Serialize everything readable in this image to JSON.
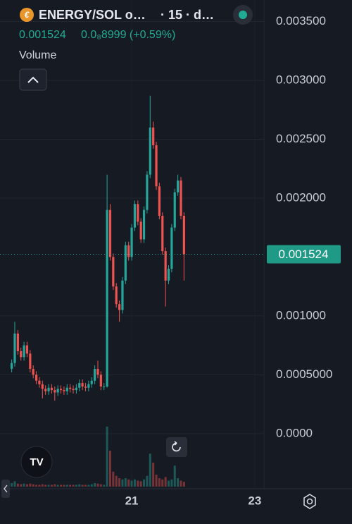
{
  "chart_data": {
    "type": "candlestick",
    "title": "ENERGY/SOL o…",
    "interval": "· 15 · d…",
    "change": "0.0₈8999 (+0.59%)",
    "volume_label": "Volume",
    "last_price": 0.001524,
    "up_color": "#26a69a",
    "down_color": "#ef5350",
    "grid": true,
    "x": [
      19.05,
      19.1,
      19.15,
      19.2,
      19.25,
      19.3,
      19.35,
      19.4,
      19.45,
      19.5,
      19.55,
      19.6,
      19.65,
      19.7,
      19.75,
      19.8,
      19.85,
      19.9,
      19.95,
      20.0,
      20.05,
      20.1,
      20.15,
      20.2,
      20.25,
      20.3,
      20.35,
      20.4,
      20.45,
      20.5,
      20.55,
      20.6,
      20.65,
      20.7,
      20.75,
      20.8,
      20.85,
      20.9,
      20.95,
      21.0,
      21.05,
      21.1,
      21.15,
      21.2,
      21.25,
      21.3,
      21.35,
      21.4,
      21.45,
      21.5,
      21.55,
      21.6,
      21.65,
      21.7,
      21.75,
      21.8,
      21.85
    ],
    "open": [
      0.00055,
      0.0006,
      0.00085,
      0.0007,
      0.00065,
      0.00075,
      0.00068,
      0.00055,
      0.0005,
      0.00045,
      0.00042,
      0.00038,
      0.00036,
      0.00039,
      0.00037,
      0.00035,
      0.00038,
      0.00037,
      0.00036,
      0.00039,
      0.00038,
      0.00037,
      0.00039,
      0.00043,
      0.0004,
      0.00039,
      0.00042,
      0.00045,
      0.00055,
      0.0005,
      0.0004,
      0.0004,
      0.0019,
      0.0015,
      0.00125,
      0.0011,
      0.00105,
      0.0013,
      0.0016,
      0.0015,
      0.00175,
      0.00195,
      0.0018,
      0.00165,
      0.0019,
      0.0022,
      0.0026,
      0.00245,
      0.0021,
      0.00185,
      0.00155,
      0.0013,
      0.0014,
      0.00175,
      0.00205,
      0.00215,
      0.00185
    ],
    "high": [
      0.00063,
      0.00095,
      0.00088,
      0.00073,
      0.00078,
      0.00078,
      0.00071,
      0.00058,
      0.00053,
      0.00048,
      0.00045,
      0.00041,
      0.00042,
      0.00042,
      0.0004,
      0.00041,
      0.00041,
      0.0004,
      0.00042,
      0.00042,
      0.00041,
      0.00042,
      0.00046,
      0.00046,
      0.00043,
      0.00045,
      0.00048,
      0.00058,
      0.00062,
      0.00053,
      0.00043,
      0.0022,
      0.00195,
      0.00153,
      0.00128,
      0.00113,
      0.00133,
      0.00163,
      0.00163,
      0.00178,
      0.00198,
      0.00198,
      0.00183,
      0.00193,
      0.00223,
      0.00287,
      0.00265,
      0.00248,
      0.00213,
      0.00188,
      0.00158,
      0.00143,
      0.00178,
      0.00208,
      0.0022,
      0.00218,
      0.00188
    ],
    "low": [
      0.00052,
      0.00057,
      0.00067,
      0.00062,
      0.00062,
      0.00065,
      0.00052,
      0.00047,
      0.00042,
      0.00039,
      0.0003,
      0.00033,
      0.00033,
      0.00034,
      0.00028,
      0.00032,
      0.00034,
      0.00033,
      0.00033,
      0.00035,
      0.00034,
      0.00034,
      0.00036,
      0.00037,
      0.00036,
      0.00036,
      0.00039,
      0.00042,
      0.00047,
      0.00037,
      0.00037,
      0.00039,
      0.00147,
      0.00122,
      0.00107,
      0.00095,
      0.00102,
      0.00127,
      0.00147,
      0.00147,
      0.00172,
      0.00177,
      0.00162,
      0.00162,
      0.00187,
      0.00217,
      0.00242,
      0.00207,
      0.00182,
      0.00152,
      0.00108,
      0.00127,
      0.00137,
      0.00172,
      0.00202,
      0.00182,
      0.0013
    ],
    "close": [
      0.0006,
      0.00085,
      0.0007,
      0.00065,
      0.00075,
      0.00068,
      0.00055,
      0.0005,
      0.00045,
      0.00042,
      0.00038,
      0.00036,
      0.00039,
      0.00037,
      0.00035,
      0.00038,
      0.00037,
      0.00036,
      0.00039,
      0.00038,
      0.00037,
      0.00039,
      0.00043,
      0.0004,
      0.00039,
      0.00042,
      0.00045,
      0.00055,
      0.0005,
      0.0004,
      0.0004,
      0.0019,
      0.0015,
      0.00125,
      0.0011,
      0.00105,
      0.0013,
      0.0016,
      0.0015,
      0.00175,
      0.00195,
      0.0018,
      0.00165,
      0.0019,
      0.0022,
      0.0026,
      0.00245,
      0.0021,
      0.00185,
      0.00155,
      0.0013,
      0.0014,
      0.00175,
      0.00205,
      0.00215,
      0.00185,
      0.001524
    ],
    "volume": [
      6,
      9,
      5,
      4,
      5,
      4,
      5,
      4,
      3,
      3,
      4,
      3,
      3,
      3,
      4,
      3,
      3,
      3,
      3,
      3,
      3,
      3,
      4,
      3,
      3,
      3,
      4,
      6,
      5,
      4,
      3,
      100,
      60,
      25,
      18,
      14,
      12,
      14,
      12,
      10,
      12,
      10,
      9,
      12,
      18,
      55,
      40,
      20,
      14,
      12,
      16,
      10,
      12,
      35,
      14,
      10,
      8
    ],
    "xlim": [
      18.86,
      23.15
    ],
    "xticks": [
      21,
      23
    ],
    "ylim": [
      -0.000468,
      0.003683
    ],
    "yticks": [
      {
        "value": 0.0035,
        "label": "0.003500"
      },
      {
        "value": 0.003,
        "label": "0.003000"
      },
      {
        "value": 0.0025,
        "label": "0.002500"
      },
      {
        "value": 0.002,
        "label": "0.002000"
      },
      {
        "value": 0.001,
        "label": "0.001000"
      },
      {
        "value": 0.0005,
        "label": "0.0005000"
      },
      {
        "value": 0,
        "label": "0.0000"
      }
    ]
  }
}
